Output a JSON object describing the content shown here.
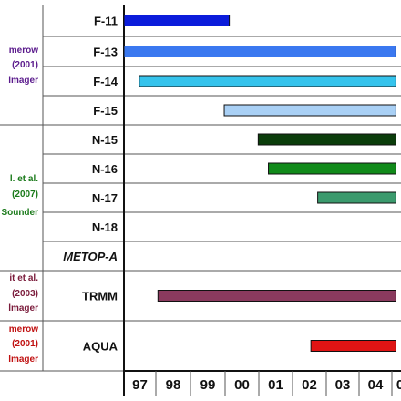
{
  "chart_data": {
    "type": "gantt",
    "x_tick_labels": [
      "97",
      "98",
      "99",
      "00",
      "01",
      "02",
      "03",
      "04",
      "0"
    ],
    "x_range": [
      1997,
      2005
    ],
    "rows": [
      {
        "label": "F-11",
        "start": 1997.0,
        "end": 2000.1,
        "color": "#0b1cdb"
      },
      {
        "label": "F-13",
        "start": 1997.0,
        "end": 2005.0,
        "color": "#3a78f0"
      },
      {
        "label": "F-14",
        "start": 1997.45,
        "end": 2005.0,
        "color": "#35c3ec"
      },
      {
        "label": "F-15",
        "start": 1999.95,
        "end": 2005.0,
        "color": "#a9d0f5"
      },
      {
        "label": "N-15",
        "start": 2000.95,
        "end": 2005.0,
        "color": "#0b3d0b"
      },
      {
        "label": "N-16",
        "start": 2001.25,
        "end": 2005.0,
        "color": "#118a1a"
      },
      {
        "label": "N-17",
        "start": 2002.7,
        "end": 2005.0,
        "color": "#3b9a6d"
      },
      {
        "label": "N-18",
        "start": null,
        "end": null,
        "color": null
      },
      {
        "label": "METOP-A",
        "start": null,
        "end": null,
        "color": null,
        "italic": true
      },
      {
        "label": "TRMM",
        "start": 1998.0,
        "end": 2005.0,
        "color": "#8a3a5e"
      },
      {
        "label": "AQUA",
        "start": 2002.5,
        "end": 2005.0,
        "color": "#e01414"
      }
    ],
    "references": [
      {
        "lines": [
          "merow",
          "(2001)",
          "lmager"
        ],
        "colors": [
          "#5a1a8c",
          "#5a1a8c",
          "#5a1a8c"
        ]
      },
      {
        "lines": [
          "l. et al.",
          "(2007)",
          "Sounder"
        ],
        "colors": [
          "#1a7a1a",
          "#1a7a1a",
          "#1a7a1a"
        ]
      },
      {
        "lines": [
          "it et al.",
          "(2003)",
          "lmager"
        ],
        "colors": [
          "#7a1a3a",
          "#7a1a3a",
          "#7a1a3a"
        ]
      },
      {
        "lines": [
          "merow",
          "(2001)",
          "lmager"
        ],
        "colors": [
          "#c01010",
          "#c01010",
          "#c01010"
        ]
      }
    ]
  }
}
